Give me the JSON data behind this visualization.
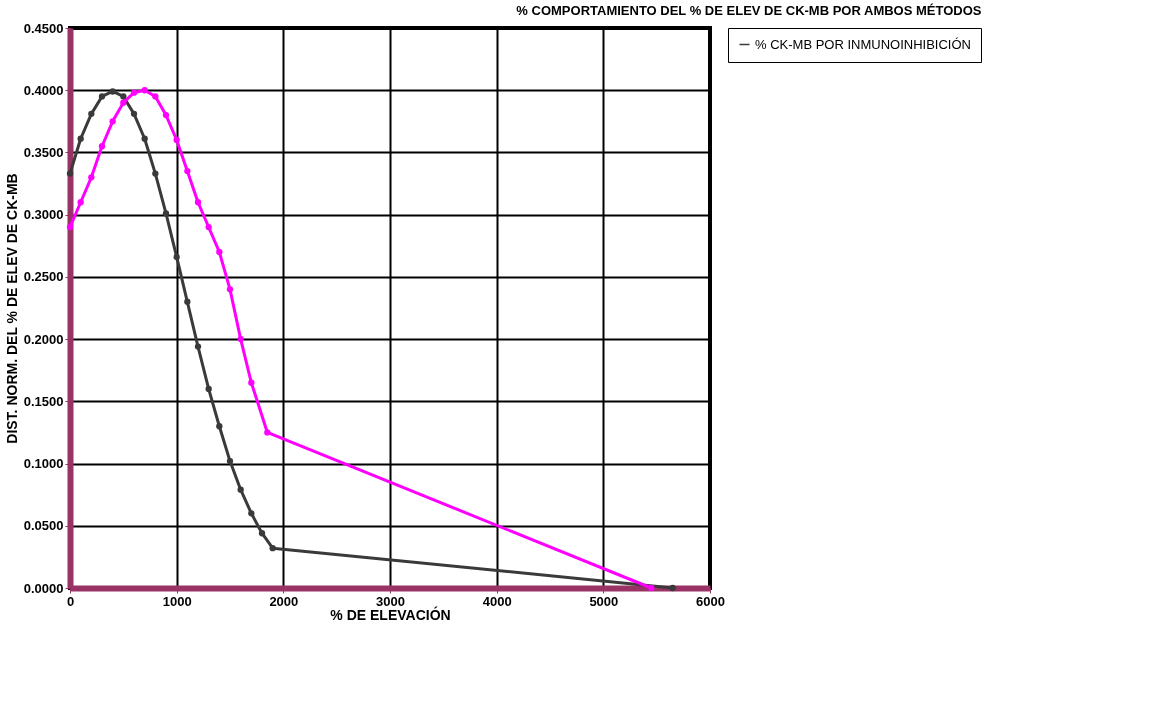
{
  "chart_data": {
    "type": "line",
    "title": "% COMPORTAMIENTO DEL % DE ELEV DE CK-MB POR AMBOS MÉTODOS",
    "xlabel": "% DE ELEVACIÓN",
    "ylabel": "DIST. NORM. DEL % DE ELEV DE CK-MB",
    "series": [
      {
        "name": "% CK-MB POR INMUNOINHIBICIÓN",
        "color": "#3a3a3a",
        "x": [
          0,
          100,
          200,
          300,
          400,
          500,
          600,
          700,
          800,
          900,
          1000,
          1100,
          1200,
          1300,
          1400,
          1500,
          1600,
          1700,
          1800,
          1900,
          5650
        ],
        "values": [
          0.333,
          0.361,
          0.381,
          0.395,
          0.399,
          0.395,
          0.381,
          0.361,
          0.333,
          0.301,
          0.266,
          0.23,
          0.194,
          0.16,
          0.13,
          0.102,
          0.079,
          0.06,
          0.044,
          0.032,
          0.0
        ]
      },
      {
        "color": "#ff00ff",
        "x": [
          0,
          100,
          200,
          300,
          400,
          500,
          600,
          700,
          800,
          900,
          1000,
          1100,
          1200,
          1300,
          1400,
          1500,
          1600,
          1700,
          1850,
          5450
        ],
        "values": [
          0.29,
          0.31,
          0.33,
          0.355,
          0.375,
          0.39,
          0.398,
          0.4,
          0.395,
          0.38,
          0.36,
          0.335,
          0.31,
          0.29,
          0.27,
          0.24,
          0.2,
          0.165,
          0.125,
          0.0
        ]
      }
    ],
    "xlim": [
      0,
      6000
    ],
    "xticks": [
      0,
      1000,
      2000,
      3000,
      4000,
      5000,
      6000
    ],
    "ylim": [
      0,
      0.45
    ],
    "yticks": [
      {
        "value": 0,
        "label": "0.0000"
      },
      {
        "value": 0.05,
        "label": "0.0500"
      },
      {
        "value": 0.1,
        "label": "0.1000"
      },
      {
        "value": 0.15,
        "label": "0.1500"
      },
      {
        "value": 0.2,
        "label": "0.2000"
      },
      {
        "value": 0.25,
        "label": "0.2500"
      },
      {
        "value": 0.3,
        "label": "0.3000"
      },
      {
        "value": 0.35,
        "label": "0.3500"
      },
      {
        "value": 0.4,
        "label": "0.4000"
      },
      {
        "value": 0.45,
        "label": "0.4500"
      }
    ],
    "grid": true,
    "legend": "right",
    "marker": "circle",
    "line_style": "solid"
  }
}
